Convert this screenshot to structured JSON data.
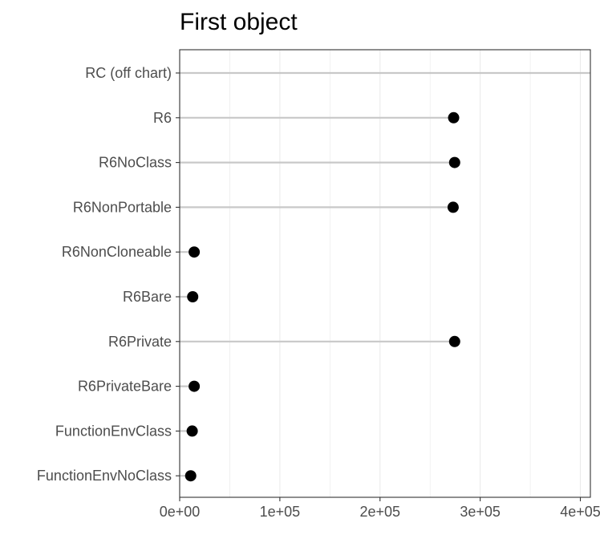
{
  "chart_data": {
    "type": "lollipop",
    "title": "First object",
    "xlabel": "",
    "ylabel": "",
    "xlim": [
      0,
      410000
    ],
    "x_ticks": [
      0,
      100000,
      200000,
      300000,
      400000
    ],
    "x_tick_labels": [
      "0e+00",
      "1e+05",
      "2e+05",
      "3e+05",
      "4e+05"
    ],
    "grid": true,
    "categories": [
      "RC (off chart)",
      "R6",
      "R6NoClass",
      "R6NonPortable",
      "R6NonCloneable",
      "R6Bare",
      "R6Private",
      "R6PrivateBare",
      "FunctionEnvClass",
      "FunctionEnvNoClass"
    ],
    "values": [
      null,
      273500,
      274500,
      273000,
      14500,
      13000,
      274500,
      14500,
      12500,
      11000
    ],
    "off_chart": [
      true,
      false,
      false,
      false,
      false,
      false,
      false,
      false,
      false,
      false
    ],
    "colors": {
      "point": "#000000",
      "stem": "#c8c8c8",
      "grid": "#ebebeb",
      "panel_border": "#333333",
      "text": "#4d4d4d"
    }
  }
}
